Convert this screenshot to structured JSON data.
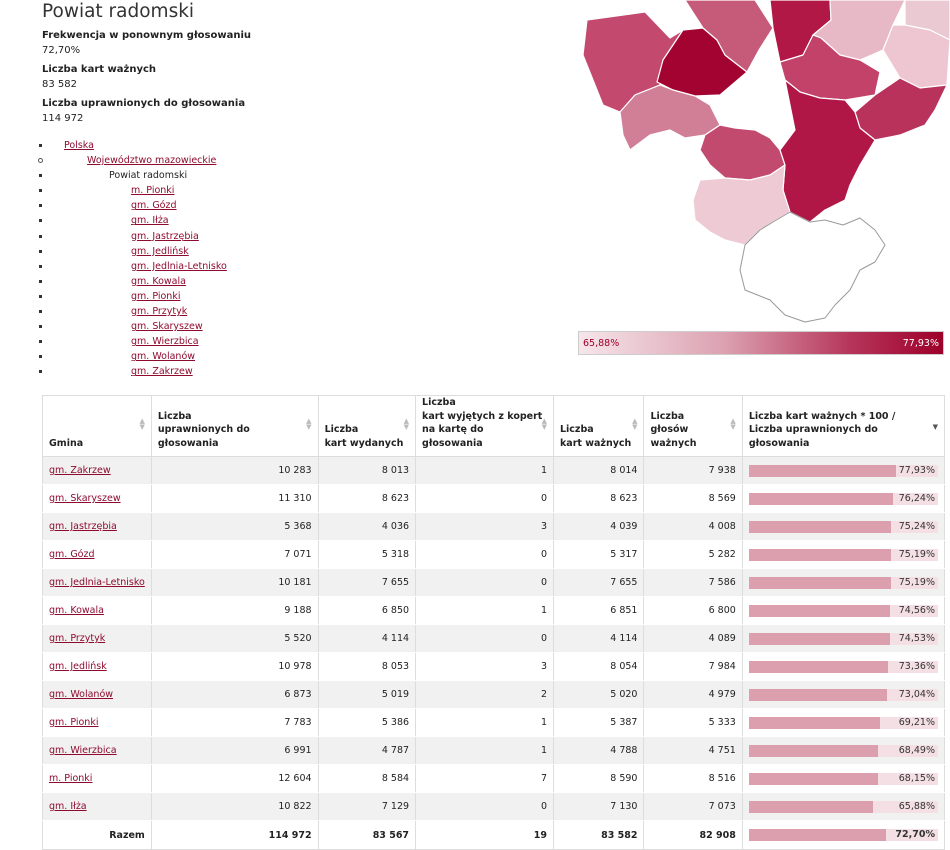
{
  "header": {
    "title": "Powiat radomski",
    "turnout_label": "Frekwencja w ponownym głosowaniu",
    "turnout_value": "72,70%",
    "valid_cards_label": "Liczba kart ważnych",
    "valid_cards_value": "83 582",
    "eligible_label": "Liczba uprawnionych do głosowania",
    "eligible_value": "114 972"
  },
  "tree": {
    "country": "Polska",
    "voivodeship": "Województwo mazowieckie",
    "county": "Powiat radomski",
    "communes": [
      "m. Pionki",
      "gm. Gózd",
      "gm. Iłża",
      "gm. Jastrzębia",
      "gm. Jedlińsk",
      "gm. Jedlnia-Letnisko",
      "gm. Kowala",
      "gm. Pionki",
      "gm. Przytyk",
      "gm. Skaryszew",
      "gm. Wierzbica",
      "gm. Wolanów",
      "gm. Zakrzew"
    ]
  },
  "legend": {
    "min": "65,88%",
    "max": "77,93%"
  },
  "colors": {
    "accent": "#9d0029",
    "bar": "#dc9fae",
    "bar_bg": "#f3dfe4",
    "link": "#8e0b2e"
  },
  "table": {
    "headers": {
      "gmina": "Gmina",
      "eligible_1": "Liczba",
      "eligible_2": "uprawnionych do głosowania",
      "issued_1": "Liczba",
      "issued_2": "kart wydanych",
      "envelope_1": "Liczba",
      "envelope_2": "kart wyjętych z kopert",
      "envelope_3": "na kartę do głosowania",
      "valid_cards_1": "Liczba",
      "valid_cards_2": "kart ważnych",
      "valid_votes_1": "Liczba",
      "valid_votes_2": "głosów ważnych",
      "ratio_1": "Liczba kart ważnych * 100 /",
      "ratio_2": "Liczba uprawnionych do głosowania"
    },
    "rows": [
      {
        "gmina": "gm. Zakrzew",
        "eligible": "10 283",
        "issued": "8 013",
        "envelope": "1",
        "valid_cards": "8 014",
        "valid_votes": "7 938",
        "ratio": "77,93%",
        "ratio_value": 77.93
      },
      {
        "gmina": "gm. Skaryszew",
        "eligible": "11 310",
        "issued": "8 623",
        "envelope": "0",
        "valid_cards": "8 623",
        "valid_votes": "8 569",
        "ratio": "76,24%",
        "ratio_value": 76.24
      },
      {
        "gmina": "gm. Jastrzębia",
        "eligible": "5 368",
        "issued": "4 036",
        "envelope": "3",
        "valid_cards": "4 039",
        "valid_votes": "4 008",
        "ratio": "75,24%",
        "ratio_value": 75.24
      },
      {
        "gmina": "gm. Gózd",
        "eligible": "7 071",
        "issued": "5 318",
        "envelope": "0",
        "valid_cards": "5 317",
        "valid_votes": "5 282",
        "ratio": "75,19%",
        "ratio_value": 75.19
      },
      {
        "gmina": "gm. Jedlnia-Letnisko",
        "eligible": "10 181",
        "issued": "7 655",
        "envelope": "0",
        "valid_cards": "7 655",
        "valid_votes": "7 586",
        "ratio": "75,19%",
        "ratio_value": 75.19
      },
      {
        "gmina": "gm. Kowala",
        "eligible": "9 188",
        "issued": "6 850",
        "envelope": "1",
        "valid_cards": "6 851",
        "valid_votes": "6 800",
        "ratio": "74,56%",
        "ratio_value": 74.56
      },
      {
        "gmina": "gm. Przytyk",
        "eligible": "5 520",
        "issued": "4 114",
        "envelope": "0",
        "valid_cards": "4 114",
        "valid_votes": "4 089",
        "ratio": "74,53%",
        "ratio_value": 74.53
      },
      {
        "gmina": "gm. Jedlińsk",
        "eligible": "10 978",
        "issued": "8 053",
        "envelope": "3",
        "valid_cards": "8 054",
        "valid_votes": "7 984",
        "ratio": "73,36%",
        "ratio_value": 73.36
      },
      {
        "gmina": "gm. Wolanów",
        "eligible": "6 873",
        "issued": "5 019",
        "envelope": "2",
        "valid_cards": "5 020",
        "valid_votes": "4 979",
        "ratio": "73,04%",
        "ratio_value": 73.04
      },
      {
        "gmina": "gm. Pionki",
        "eligible": "7 783",
        "issued": "5 386",
        "envelope": "1",
        "valid_cards": "5 387",
        "valid_votes": "5 333",
        "ratio": "69,21%",
        "ratio_value": 69.21
      },
      {
        "gmina": "gm. Wierzbica",
        "eligible": "6 991",
        "issued": "4 787",
        "envelope": "1",
        "valid_cards": "4 788",
        "valid_votes": "4 751",
        "ratio": "68,49%",
        "ratio_value": 68.49
      },
      {
        "gmina": "m. Pionki",
        "eligible": "12 604",
        "issued": "8 584",
        "envelope": "7",
        "valid_cards": "8 590",
        "valid_votes": "8 516",
        "ratio": "68,15%",
        "ratio_value": 68.15
      },
      {
        "gmina": "gm. Iłża",
        "eligible": "10 822",
        "issued": "7 129",
        "envelope": "0",
        "valid_cards": "7 130",
        "valid_votes": "7 073",
        "ratio": "65,88%",
        "ratio_value": 65.88
      }
    ],
    "total": {
      "label": "Razem",
      "eligible": "114 972",
      "issued": "83 567",
      "envelope": "19",
      "valid_cards": "83 582",
      "valid_votes": "82 908",
      "ratio": "72,70%",
      "ratio_value": 72.7
    }
  }
}
